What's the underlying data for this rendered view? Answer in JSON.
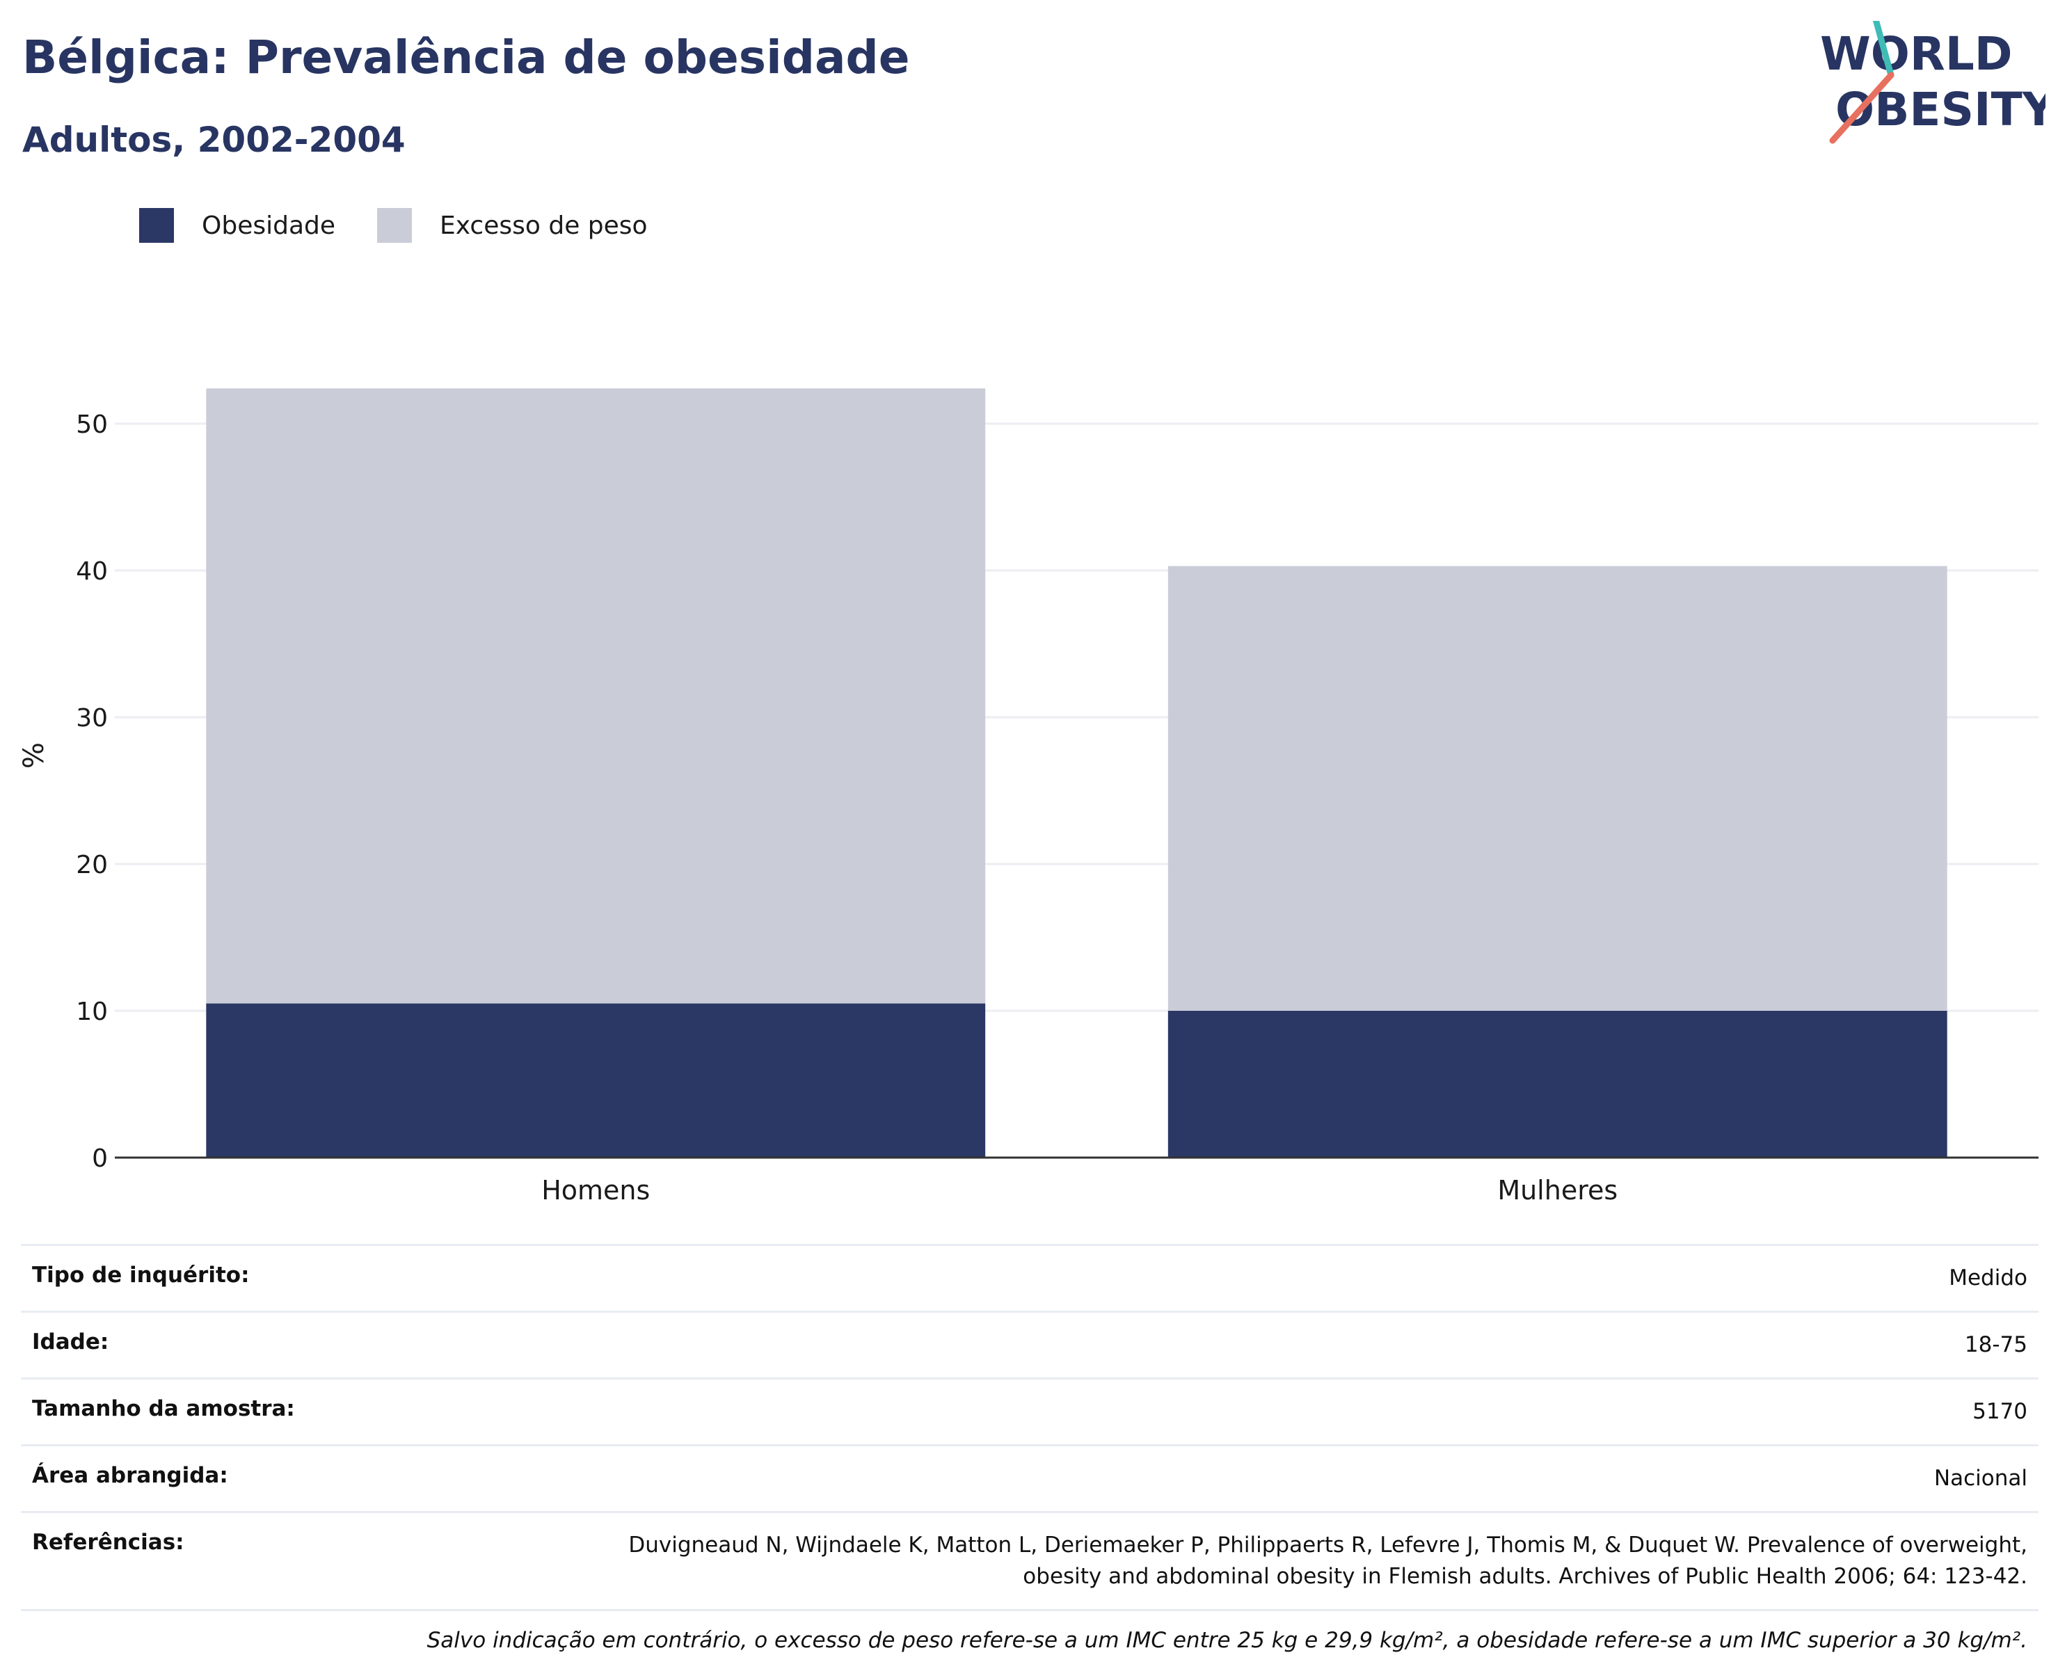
{
  "header": {
    "title": "Bélgica: Prevalência de obesidade",
    "subtitle": "Adultos, 2002-2004"
  },
  "logo": {
    "line1": "WORLD",
    "line2": "OBESITY"
  },
  "colors": {
    "obesity": "#2b3765",
    "overweight": "#caccd8",
    "title": "#283562",
    "gridline": "#eceef3",
    "axis": "#333333",
    "logo_teal": "#3fbcb5",
    "logo_coral": "#e8705e"
  },
  "chart_data": {
    "type": "bar",
    "stacked": true,
    "categories": [
      "Homens",
      "Mulheres"
    ],
    "series": [
      {
        "name": "Obesidade",
        "values": [
          10.5,
          10.0
        ],
        "color": "#2b3765"
      },
      {
        "name": "Excesso de peso",
        "values": [
          41.9,
          30.3
        ],
        "color": "#caccd8"
      }
    ],
    "ylabel": "%",
    "ylim": [
      0,
      55
    ],
    "yticks": [
      0,
      10,
      20,
      30,
      40,
      50
    ],
    "grid": true,
    "legend_position": "top-left"
  },
  "info": {
    "survey_type_label": "Tipo de inquérito:",
    "survey_type_value": "Medido",
    "age_label": "Idade:",
    "age_value": "18-75",
    "sample_label": "Tamanho da amostra:",
    "sample_value": "5170",
    "area_label": "Área abrangida:",
    "area_value": "Nacional",
    "references_label": "Referências:",
    "references_line1": "Duvigneaud N, Wijndaele K, Matton L, Deriemaeker P, Philippaerts R, Lefevre J, Thomis M, & Duquet W. Prevalence of overweight,",
    "references_line2": "obesity and abdominal obesity in Flemish adults. Archives of Public Health 2006; 64: 123-42.",
    "note": "Salvo indicação em contrário, o excesso de peso refere-se a um IMC entre 25 kg e 29,9 kg/m², a obesidade refere-se a um IMC superior a 30 kg/m²."
  }
}
